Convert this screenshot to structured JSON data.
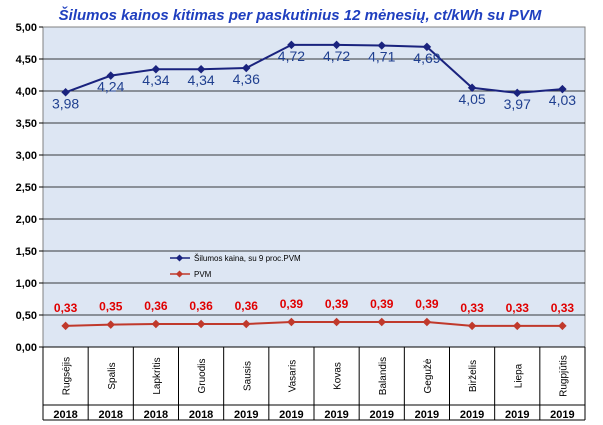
{
  "chart_data": {
    "type": "line",
    "title": "Šilumos kainos kitimas per paskutinius 12 mėnesių, ct/kWh su PVM",
    "categories": [
      "Rugsėjis",
      "Spalis",
      "Lapkritis",
      "Gruodis",
      "Sausis",
      "Vasaris",
      "Kovas",
      "Balandis",
      "Gegužė",
      "Birželis",
      "Liepa",
      "Rugpjūtis"
    ],
    "years": [
      "2018",
      "2018",
      "2018",
      "2018",
      "2019",
      "2019",
      "2019",
      "2019",
      "2019",
      "2019",
      "2019",
      "2019"
    ],
    "series": [
      {
        "name": "Šilumos kaina, su 9 proc.PVM",
        "color": "#1a237e",
        "values": [
          3.98,
          4.24,
          4.34,
          4.34,
          4.36,
          4.72,
          4.72,
          4.71,
          4.69,
          4.05,
          3.97,
          4.03
        ],
        "labels": [
          "3,98",
          "4,24",
          "4,34",
          "4,34",
          "4,36",
          "4,72",
          "4,72",
          "4,71",
          "4,69",
          "4,05",
          "3,97",
          "4,03"
        ]
      },
      {
        "name": "PVM",
        "color": "#c0392b",
        "values": [
          0.33,
          0.35,
          0.36,
          0.36,
          0.36,
          0.39,
          0.39,
          0.39,
          0.39,
          0.33,
          0.33,
          0.33
        ],
        "labels": [
          "0,33",
          "0,35",
          "0,36",
          "0,36",
          "0,36",
          "0,39",
          "0,39",
          "0,39",
          "0,39",
          "0,33",
          "0,33",
          "0,33"
        ]
      }
    ],
    "ylim": [
      0,
      5
    ],
    "yticks": [
      "0,00",
      "0,50",
      "1,00",
      "1,50",
      "2,00",
      "2,50",
      "3,00",
      "3,50",
      "4,00",
      "4,50",
      "5,00"
    ],
    "grid": true,
    "legend": "center-left",
    "plot_background": "#dde6f3"
  }
}
